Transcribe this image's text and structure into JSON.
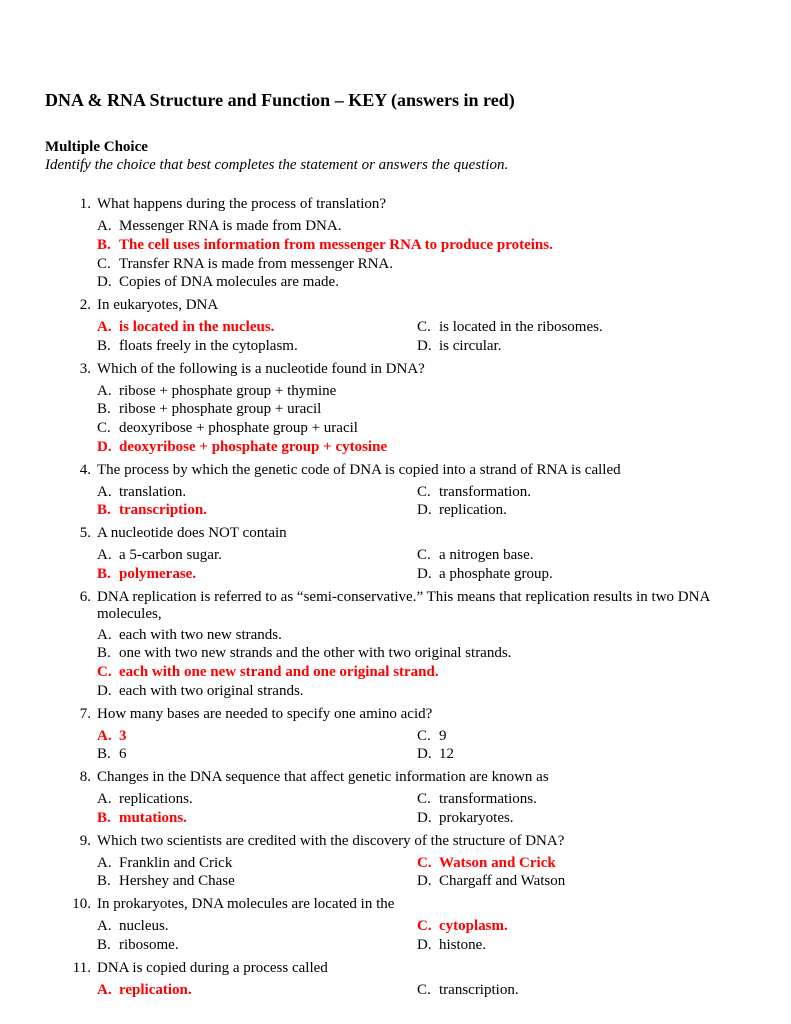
{
  "colors": {
    "text": "#000000",
    "answer": "#ff0000",
    "background": "#ffffff"
  },
  "typography": {
    "font_family": "Times New Roman",
    "title_fontsize": 18,
    "body_fontsize": 15,
    "title_weight": "bold",
    "answer_weight": "bold"
  },
  "title": "DNA & RNA Structure and Function – KEY (answers in red)",
  "section_heading": "Multiple Choice",
  "instructions": "Identify the choice that best completes the statement or answers the question.",
  "questions": [
    {
      "num": "1.",
      "text": "What happens during the process of translation?",
      "layout": "single",
      "choices": [
        {
          "letter": "A.",
          "text": "Messenger RNA is made from DNA.",
          "answer": false
        },
        {
          "letter": "B.",
          "text": "The cell uses information from messenger RNA to produce proteins.",
          "answer": true
        },
        {
          "letter": "C.",
          "text": "Transfer RNA is made from messenger RNA.",
          "answer": false
        },
        {
          "letter": "D.",
          "text": "Copies of DNA molecules are made.",
          "answer": false
        }
      ]
    },
    {
      "num": "2.",
      "text": "In eukaryotes, DNA",
      "layout": "two",
      "rows": [
        [
          {
            "letter": "A.",
            "text": "is located in the nucleus.",
            "answer": true
          },
          {
            "letter": "C.",
            "text": "is located in the ribosomes.",
            "answer": false
          }
        ],
        [
          {
            "letter": "B.",
            "text": "floats freely in the cytoplasm.",
            "answer": false
          },
          {
            "letter": "D.",
            "text": "is circular.",
            "answer": false
          }
        ]
      ]
    },
    {
      "num": "3.",
      "text": "Which of the following is a nucleotide found in DNA?",
      "layout": "single",
      "choices": [
        {
          "letter": "A.",
          "text": "ribose + phosphate group + thymine",
          "answer": false
        },
        {
          "letter": "B.",
          "text": "ribose + phosphate group + uracil",
          "answer": false
        },
        {
          "letter": "C.",
          "text": "deoxyribose + phosphate group + uracil",
          "answer": false
        },
        {
          "letter": "D.",
          "text": "deoxyribose + phosphate group + cytosine",
          "answer": true
        }
      ]
    },
    {
      "num": "4.",
      "text": "The process by which the genetic code of DNA is copied into a strand of RNA is called",
      "layout": "two",
      "rows": [
        [
          {
            "letter": "A.",
            "text": "translation.",
            "answer": false
          },
          {
            "letter": "C.",
            "text": "transformation.",
            "answer": false
          }
        ],
        [
          {
            "letter": "B.",
            "text": "transcription.",
            "answer": true
          },
          {
            "letter": "D.",
            "text": "replication.",
            "answer": false
          }
        ]
      ]
    },
    {
      "num": "5.",
      "text": "A nucleotide does NOT contain",
      "layout": "two",
      "rows": [
        [
          {
            "letter": "A.",
            "text": "a 5-carbon sugar.",
            "answer": false
          },
          {
            "letter": "C.",
            "text": "a nitrogen base.",
            "answer": false
          }
        ],
        [
          {
            "letter": "B.",
            "text": "polymerase.",
            "answer": true
          },
          {
            "letter": "D.",
            "text": "a phosphate group.",
            "answer": false
          }
        ]
      ]
    },
    {
      "num": "6.",
      "text": "DNA replication is referred to as “semi-conservative.”  This means that replication results in two DNA molecules,",
      "layout": "single",
      "choices": [
        {
          "letter": "A.",
          "text": "each with two new strands.",
          "answer": false
        },
        {
          "letter": "B.",
          "text": "one with two new strands and the other with two original strands.",
          "answer": false
        },
        {
          "letter": "C.",
          "text": "each with one new strand and one original strand.",
          "answer": true
        },
        {
          "letter": "D.",
          "text": "each with two original strands.",
          "answer": false
        }
      ]
    },
    {
      "num": "7.",
      "text": "How many bases are needed to specify one amino acid?",
      "layout": "two",
      "rows": [
        [
          {
            "letter": "A.",
            "text": "3",
            "answer": true
          },
          {
            "letter": "C.",
            "text": "9",
            "answer": false
          }
        ],
        [
          {
            "letter": "B.",
            "text": "6",
            "answer": false
          },
          {
            "letter": "D.",
            "text": "12",
            "answer": false
          }
        ]
      ]
    },
    {
      "num": "8.",
      "text": "Changes in the DNA sequence that affect genetic information are known as",
      "layout": "two",
      "rows": [
        [
          {
            "letter": "A.",
            "text": "replications.",
            "answer": false
          },
          {
            "letter": "C.",
            "text": "transformations.",
            "answer": false
          }
        ],
        [
          {
            "letter": "B.",
            "text": "mutations.",
            "answer": true
          },
          {
            "letter": "D.",
            "text": "prokaryotes.",
            "answer": false
          }
        ]
      ]
    },
    {
      "num": "9.",
      "text": "Which two scientists are credited with the discovery of the structure of DNA?",
      "layout": "two",
      "rows": [
        [
          {
            "letter": "A.",
            "text": "Franklin and Crick",
            "answer": false
          },
          {
            "letter": "C.",
            "text": "Watson and Crick",
            "answer": true
          }
        ],
        [
          {
            "letter": "B.",
            "text": "Hershey and Chase",
            "answer": false
          },
          {
            "letter": "D.",
            "text": "Chargaff and Watson",
            "answer": false
          }
        ]
      ]
    },
    {
      "num": "10.",
      "text": "In prokaryotes, DNA molecules are located in the",
      "layout": "two",
      "rows": [
        [
          {
            "letter": "A.",
            "text": "nucleus.",
            "answer": false
          },
          {
            "letter": "C.",
            "text": "cytoplasm.",
            "answer": true
          }
        ],
        [
          {
            "letter": "B.",
            "text": "ribosome.",
            "answer": false
          },
          {
            "letter": "D.",
            "text": "histone.",
            "answer": false
          }
        ]
      ]
    },
    {
      "num": "11.",
      "text": "DNA is copied during a process called",
      "layout": "two",
      "rows": [
        [
          {
            "letter": "A.",
            "text": "replication.",
            "answer": true
          },
          {
            "letter": "C.",
            "text": "transcription.",
            "answer": false
          }
        ]
      ]
    }
  ]
}
